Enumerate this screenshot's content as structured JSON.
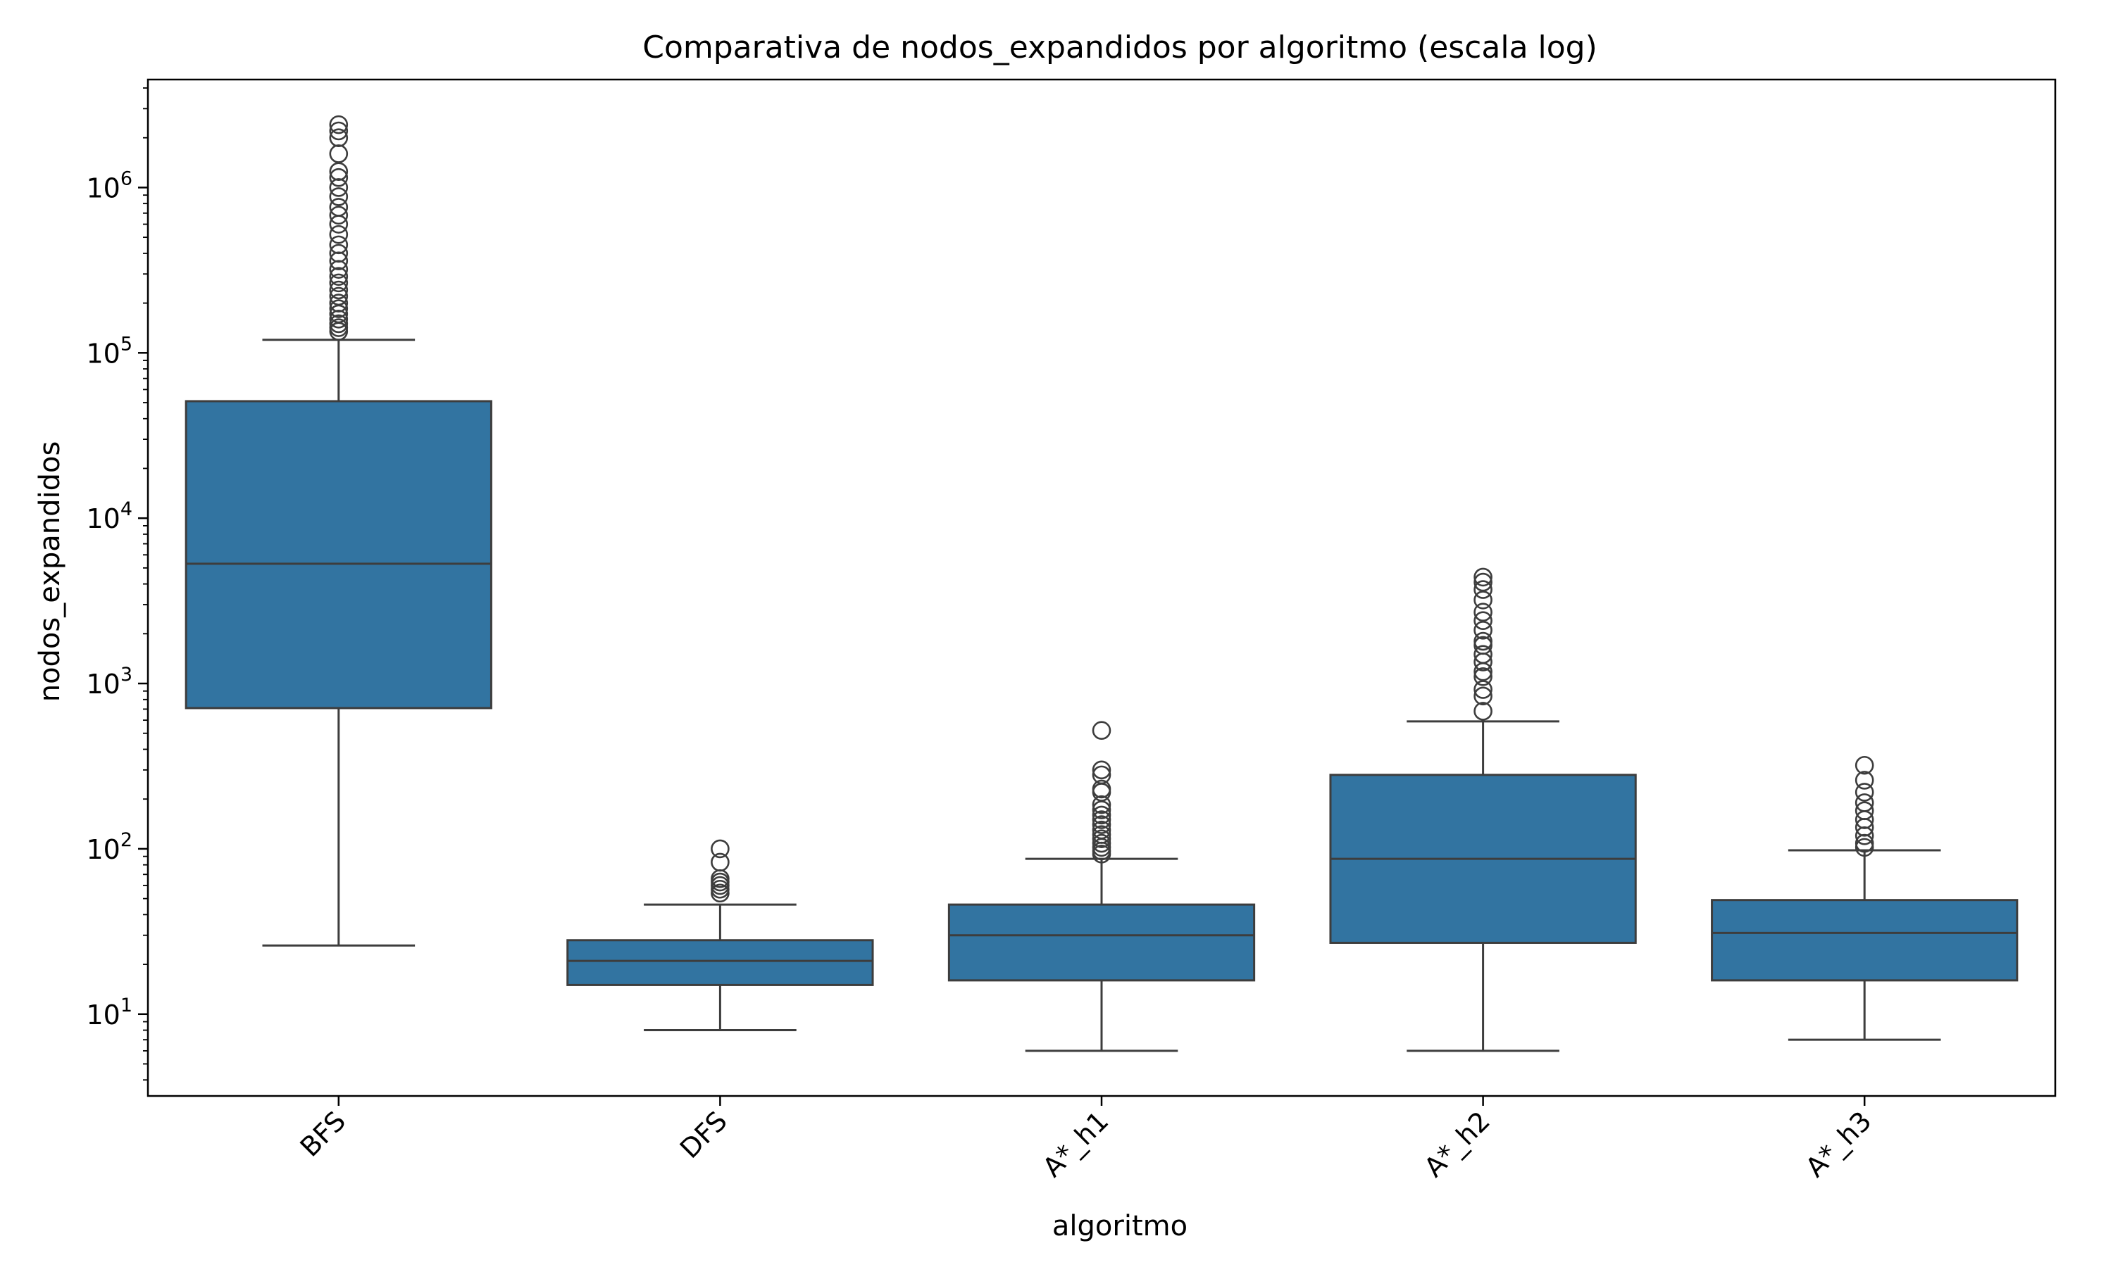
{
  "chart_data": {
    "type": "box",
    "title": "Comparativa de nodos_expandidos por algoritmo (escala log)",
    "xlabel": "algoritmo",
    "ylabel": "nodos_expandidos",
    "yscale": "log",
    "ylim": [
      3.2,
      4500000
    ],
    "yticks": [
      {
        "value": 10,
        "base": "10",
        "exp": "1"
      },
      {
        "value": 100,
        "base": "10",
        "exp": "2"
      },
      {
        "value": 1000,
        "base": "10",
        "exp": "3"
      },
      {
        "value": 10000,
        "base": "10",
        "exp": "4"
      },
      {
        "value": 100000,
        "base": "10",
        "exp": "5"
      },
      {
        "value": 1000000,
        "base": "10",
        "exp": "6"
      }
    ],
    "grid": false,
    "box_color": "#3274a1",
    "edge_color": "#3d3d3d",
    "categories": [
      "BFS",
      "DFS",
      "A*_h1",
      "A*_h2",
      "A*_h3"
    ],
    "boxes": [
      {
        "category": "BFS",
        "whisker_low": 26,
        "q1": 710,
        "median": 5300,
        "q3": 51000,
        "whisker_high": 120000,
        "outliers": [
          135000,
          142000,
          150000,
          160000,
          172000,
          185000,
          200000,
          220000,
          240000,
          265000,
          290000,
          320000,
          360000,
          400000,
          450000,
          520000,
          600000,
          680000,
          760000,
          880000,
          1000000,
          1150000,
          1250000,
          1600000,
          2000000,
          2200000,
          2400000
        ]
      },
      {
        "category": "DFS",
        "whisker_low": 8,
        "q1": 15,
        "median": 21,
        "q3": 28,
        "whisker_high": 46,
        "outliers": [
          54,
          57,
          60,
          63,
          66,
          83,
          100
        ]
      },
      {
        "category": "A*_h1",
        "whisker_low": 6,
        "q1": 16,
        "median": 30,
        "q3": 46,
        "whisker_high": 87,
        "outliers": [
          93,
          97,
          102,
          108,
          115,
          122,
          130,
          140,
          150,
          160,
          172,
          185,
          220,
          230,
          280,
          300,
          520
        ]
      },
      {
        "category": "A*_h2",
        "whisker_low": 6,
        "q1": 27,
        "median": 87,
        "q3": 280,
        "whisker_high": 590,
        "outliers": [
          680,
          840,
          920,
          1100,
          1180,
          1350,
          1500,
          1700,
          1800,
          2100,
          2400,
          2700,
          3200,
          3700,
          4100,
          4400
        ]
      },
      {
        "category": "A*_h3",
        "whisker_low": 7,
        "q1": 16,
        "median": 31,
        "q3": 49,
        "whisker_high": 98,
        "outliers": [
          102,
          108,
          120,
          135,
          150,
          170,
          190,
          220,
          260,
          320
        ]
      }
    ]
  }
}
